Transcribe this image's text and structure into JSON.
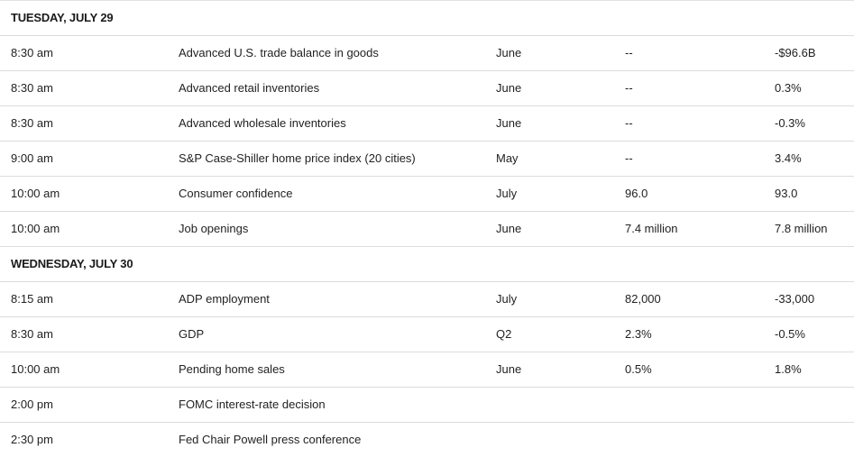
{
  "days": [
    {
      "title": "TUESDAY, JULY 29",
      "rows": [
        {
          "time": "8:30 am",
          "event": "Advanced U.S. trade balance in goods",
          "period": "June",
          "forecast": "--",
          "previous": "-$96.6B"
        },
        {
          "time": "8:30 am",
          "event": "Advanced retail inventories",
          "period": "June",
          "forecast": "--",
          "previous": "0.3%"
        },
        {
          "time": "8:30 am",
          "event": "Advanced wholesale inventories",
          "period": "June",
          "forecast": "--",
          "previous": "-0.3%"
        },
        {
          "time": "9:00 am",
          "event": "S&P Case-Shiller home price index (20 cities)",
          "period": "May",
          "forecast": "--",
          "previous": "3.4%"
        },
        {
          "time": "10:00 am",
          "event": "Consumer confidence",
          "period": "July",
          "forecast": "96.0",
          "previous": "93.0"
        },
        {
          "time": "10:00 am",
          "event": "Job openings",
          "period": "June",
          "forecast": "7.4 million",
          "previous": "7.8 million"
        }
      ]
    },
    {
      "title": "WEDNESDAY, JULY 30",
      "rows": [
        {
          "time": "8:15 am",
          "event": "ADP employment",
          "period": "July",
          "forecast": "82,000",
          "previous": "-33,000"
        },
        {
          "time": "8:30 am",
          "event": "GDP",
          "period": "Q2",
          "forecast": "2.3%",
          "previous": "-0.5%"
        },
        {
          "time": "10:00 am",
          "event": "Pending home sales",
          "period": "June",
          "forecast": "0.5%",
          "previous": "1.8%"
        },
        {
          "time": "2:00 pm",
          "event": "FOMC interest-rate decision",
          "period": "",
          "forecast": "",
          "previous": ""
        },
        {
          "time": "2:30 pm",
          "event": "Fed Chair Powell press conference",
          "period": "",
          "forecast": "",
          "previous": ""
        }
      ]
    }
  ]
}
